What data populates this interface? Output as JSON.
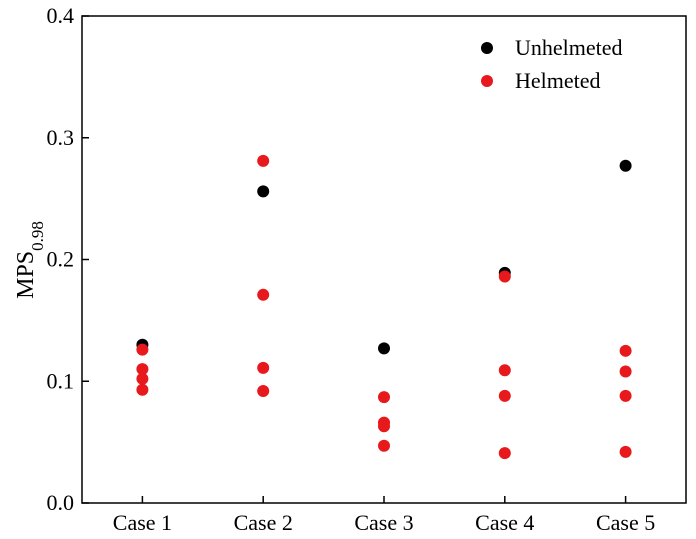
{
  "chart_data": {
    "type": "scatter",
    "categories": [
      "Case 1",
      "Case 2",
      "Case 3",
      "Case 4",
      "Case 5"
    ],
    "ylabel_main": "MPS",
    "ylabel_sub": "0.98",
    "ylim": [
      0.0,
      0.4
    ],
    "yticks": [
      "0.0",
      "0.1",
      "0.2",
      "0.3",
      "0.4"
    ],
    "grid": false,
    "legend_position": "top-right",
    "series": [
      {
        "name": "Unhelmeted",
        "color": "#000000",
        "values": [
          [
            0.13
          ],
          [
            0.256
          ],
          [
            0.127
          ],
          [
            0.189
          ],
          [
            0.277
          ]
        ]
      },
      {
        "name": "Helmeted",
        "color": "#e8191c",
        "values": [
          [
            0.126,
            0.11,
            0.102,
            0.093
          ],
          [
            0.281,
            0.171,
            0.111,
            0.092
          ],
          [
            0.087,
            0.066,
            0.063,
            0.047
          ],
          [
            0.186,
            0.109,
            0.088,
            0.041
          ],
          [
            0.125,
            0.108,
            0.088,
            0.042
          ]
        ]
      }
    ]
  }
}
